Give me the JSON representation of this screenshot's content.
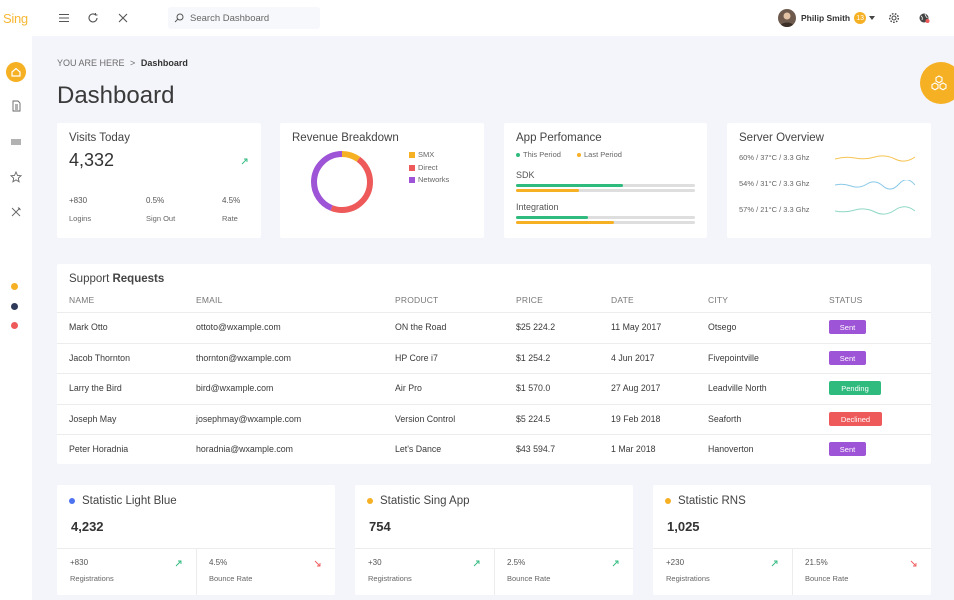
{
  "app": {
    "logo": "Sing"
  },
  "colors": {
    "accent": "#f6b024",
    "green": "#2fba7e",
    "red": "#ee5a5a",
    "purple": "#9e54d6",
    "blue": "#4e73f0"
  },
  "header": {
    "search_placeholder": "Search Dashboard",
    "user_name": "Philip Smith",
    "notifications": "13"
  },
  "breadcrumb": {
    "prefix": "YOU ARE HERE",
    "separator": ">",
    "current": "Dashboard"
  },
  "page_title": "Dashboard",
  "visits": {
    "title": "Visits Today",
    "value": "4,332",
    "stats": [
      {
        "value": "+830",
        "label": "Logins"
      },
      {
        "value": "0.5%",
        "label": "Sign Out"
      },
      {
        "value": "4.5%",
        "label": "Rate"
      }
    ]
  },
  "revenue": {
    "title": "Revenue Breakdown",
    "legend": [
      {
        "label": "SMX",
        "color": "#f6b024"
      },
      {
        "label": "Direct",
        "color": "#ee5a5a"
      },
      {
        "label": "Networks",
        "color": "#9e54d6"
      }
    ],
    "chart_data": {
      "type": "pie",
      "categories": [
        "SMX",
        "Direct",
        "Networks"
      ],
      "values": [
        10,
        46,
        44
      ]
    }
  },
  "performance": {
    "title": "App Perfomance",
    "legend": [
      {
        "label": "This Period",
        "color": "#2fba7e"
      },
      {
        "label": "Last Period",
        "color": "#f6b024"
      }
    ],
    "bars": [
      {
        "label": "SDK",
        "this_period": 0.6,
        "last_period": 0.35
      },
      {
        "label": "Integration",
        "this_period": 0.4,
        "last_period": 0.55
      }
    ]
  },
  "server": {
    "title": "Server Overview",
    "rows": [
      {
        "label": "60% / 37°C / 3.3 Ghz",
        "color": "#f6c453"
      },
      {
        "label": "54% / 31°C / 3.3 Ghz",
        "color": "#89c8e8"
      },
      {
        "label": "57% / 21°C / 3.3 Ghz",
        "color": "#8fd8c6"
      }
    ]
  },
  "support": {
    "title_light": "Support",
    "title_bold": "Requests",
    "columns": [
      "NAME",
      "EMAIL",
      "PRODUCT",
      "PRICE",
      "DATE",
      "CITY",
      "STATUS"
    ],
    "rows": [
      {
        "name": "Mark Otto",
        "email": "ottoto@wxample.com",
        "product": "ON the Road",
        "price": "$25 224.2",
        "date": "11 May 2017",
        "city": "Otsego",
        "status": "Sent",
        "status_color": "#9e54d6"
      },
      {
        "name": "Jacob Thornton",
        "email": "thornton@wxample.com",
        "product": "HP Core i7",
        "price": "$1 254.2",
        "date": "4 Jun 2017",
        "city": "Fivepointville",
        "status": "Sent",
        "status_color": "#9e54d6"
      },
      {
        "name": "Larry the Bird",
        "email": "bird@wxample.com",
        "product": "Air Pro",
        "price": "$1 570.0",
        "date": "27 Aug 2017",
        "city": "Leadville North",
        "status": "Pending",
        "status_color": "#2fba7e"
      },
      {
        "name": "Joseph May",
        "email": "josephmay@wxample.com",
        "product": "Version Control",
        "price": "$5 224.5",
        "date": "19 Feb 2018",
        "city": "Seaforth",
        "status": "Declined",
        "status_color": "#ee5a5a"
      },
      {
        "name": "Peter Horadnia",
        "email": "horadnia@wxample.com",
        "product": "Let's Dance",
        "price": "$43 594.7",
        "date": "1 Mar 2018",
        "city": "Hanoverton",
        "status": "Sent",
        "status_color": "#9e54d6"
      }
    ]
  },
  "stats": [
    {
      "title_light": "Statistic",
      "title_name": "Light Blue",
      "dot_color": "#4e73f0",
      "value": "4,232",
      "left": {
        "value": "+830",
        "label": "Registrations"
      },
      "right": {
        "value": "4.5%",
        "label": "Bounce Rate"
      }
    },
    {
      "title_light": "Statistic",
      "title_name": "Sing App",
      "dot_color": "#f6b024",
      "value": "754",
      "left": {
        "value": "+30",
        "label": "Registrations"
      },
      "right": {
        "value": "2.5%",
        "label": "Bounce Rate"
      }
    },
    {
      "title_light": "Statistic",
      "title_name": "RNS",
      "dot_color": "#f6b024",
      "value": "1,025",
      "left": {
        "value": "+230",
        "label": "Registrations"
      },
      "right": {
        "value": "21.5%",
        "label": "Bounce Rate"
      }
    }
  ]
}
